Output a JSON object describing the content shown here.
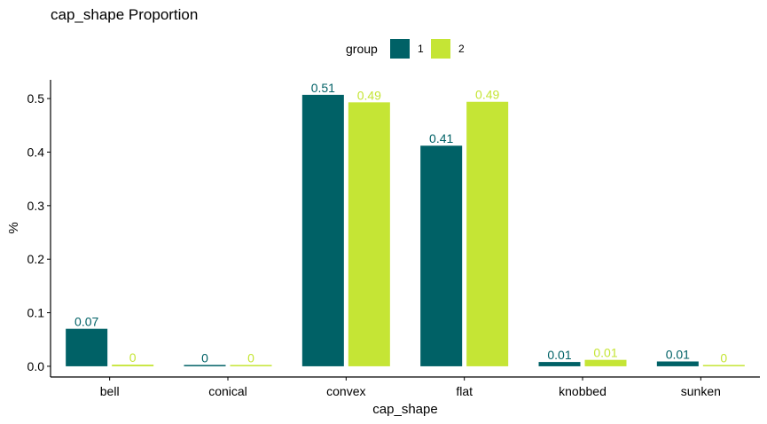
{
  "chart_data": {
    "type": "bar",
    "title": "cap_shape Proportion",
    "xlabel": "cap_shape",
    "ylabel": "%",
    "categories": [
      "bell",
      "conical",
      "convex",
      "flat",
      "knobbed",
      "sunken"
    ],
    "ylim": [
      -0.02,
      0.535
    ],
    "yticks": [
      0.0,
      0.1,
      0.2,
      0.3,
      0.4,
      0.5
    ],
    "ytick_labels": [
      "0.0",
      "0.1",
      "0.2",
      "0.3",
      "0.4",
      "0.5"
    ],
    "grid": false,
    "legend": {
      "title": "group",
      "placement": "top"
    },
    "series": [
      {
        "name": "1",
        "color": "#006166",
        "values": [
          0.07,
          0.002,
          0.507,
          0.412,
          0.008,
          0.009
        ],
        "labels": [
          "0.07",
          "0",
          "0.51",
          "0.41",
          "0.01",
          "0.01"
        ]
      },
      {
        "name": "2",
        "color": "#c5e535",
        "values": [
          0.003,
          0.002,
          0.493,
          0.494,
          0.012,
          0.002
        ],
        "labels": [
          "0",
          "0",
          "0.49",
          "0.49",
          "0.01",
          "0"
        ]
      }
    ]
  }
}
